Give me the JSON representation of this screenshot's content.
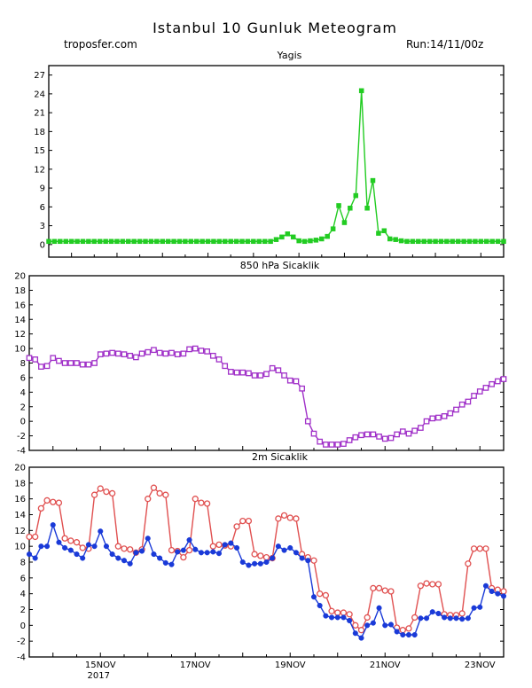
{
  "header": {
    "title": "Istanbul 10 Gunluk Meteogram",
    "site": "troposfer.com",
    "run": "Run:14/11/00z"
  },
  "x_axis": {
    "ticks": [
      {
        "label": "15NOV",
        "sub": "2017",
        "day": 1.5
      },
      {
        "label": "17NOV",
        "sub": "",
        "day": 3.5
      },
      {
        "label": "19NOV",
        "sub": "",
        "day": 5.5
      },
      {
        "label": "21NOV",
        "sub": "",
        "day": 7.5
      },
      {
        "label": "23NOV",
        "sub": "",
        "day": 9.5
      }
    ]
  },
  "chart_data": [
    {
      "type": "line",
      "title": "Yagis",
      "xlabel": "",
      "ylabel": "",
      "ylim": [
        -2,
        28.5
      ],
      "yticks": [
        0,
        3,
        6,
        9,
        12,
        15,
        18,
        21,
        24,
        27
      ],
      "grid": false,
      "series": [
        {
          "name": "",
          "color": "#22cc22",
          "marker": "square",
          "x": [
            0,
            0.125,
            0.25,
            0.375,
            0.5,
            0.625,
            0.75,
            0.875,
            1,
            1.125,
            1.25,
            1.375,
            1.5,
            1.625,
            1.75,
            1.875,
            2,
            2.125,
            2.25,
            2.375,
            2.5,
            2.625,
            2.75,
            2.875,
            3,
            3.125,
            3.25,
            3.375,
            3.5,
            3.625,
            3.75,
            3.875,
            4,
            4.125,
            4.25,
            4.375,
            4.5,
            4.625,
            4.75,
            4.875,
            5,
            5.125,
            5.25,
            5.375,
            5.5,
            5.625,
            5.75,
            5.875,
            6,
            6.125,
            6.25,
            6.375,
            6.5,
            6.625,
            6.75,
            6.875,
            7,
            7.125,
            7.25,
            7.375,
            7.5,
            7.625,
            7.75,
            7.875,
            8,
            8.125,
            8.25,
            8.375,
            8.5,
            8.625,
            8.75,
            8.875,
            9,
            9.125,
            9.25,
            9.375,
            9.5,
            9.625,
            9.75,
            9.875,
            10
          ],
          "values": [
            0.5,
            0.5,
            0.5,
            0.5,
            0.5,
            0.5,
            0.5,
            0.5,
            0.5,
            0.5,
            0.5,
            0.5,
            0.5,
            0.5,
            0.5,
            0.5,
            0.5,
            0.5,
            0.5,
            0.5,
            0.5,
            0.5,
            0.5,
            0.5,
            0.5,
            0.5,
            0.5,
            0.5,
            0.5,
            0.5,
            0.5,
            0.5,
            0.5,
            0.5,
            0.5,
            0.5,
            0.5,
            0.5,
            0.5,
            0.5,
            0.8,
            1.2,
            1.7,
            1.2,
            0.6,
            0.5,
            0.6,
            0.7,
            0.9,
            1.3,
            2.5,
            6.2,
            3.5,
            5.8,
            7.8,
            24.5,
            5.8,
            10.2,
            1.8,
            2.2,
            0.9,
            0.8,
            0.6,
            0.5,
            0.5,
            0.5,
            0.5,
            0.5,
            0.5,
            0.5,
            0.5,
            0.5,
            0.5,
            0.5,
            0.5,
            0.5,
            0.5,
            0.5,
            0.5,
            0.5,
            0.5
          ]
        }
      ]
    },
    {
      "type": "line",
      "title": "850 hPa Sicaklik",
      "xlabel": "",
      "ylabel": "",
      "ylim": [
        -4,
        20
      ],
      "yticks": [
        -4,
        -2,
        0,
        2,
        4,
        6,
        8,
        10,
        12,
        14,
        16,
        18,
        20
      ],
      "grid": false,
      "series": [
        {
          "name": "",
          "color": "#a030c8",
          "marker": "square-open",
          "x": [
            0,
            0.125,
            0.25,
            0.375,
            0.5,
            0.625,
            0.75,
            0.875,
            1,
            1.125,
            1.25,
            1.375,
            1.5,
            1.625,
            1.75,
            1.875,
            2,
            2.125,
            2.25,
            2.375,
            2.5,
            2.625,
            2.75,
            2.875,
            3,
            3.125,
            3.25,
            3.375,
            3.5,
            3.625,
            3.75,
            3.875,
            4,
            4.125,
            4.25,
            4.375,
            4.5,
            4.625,
            4.75,
            4.875,
            5,
            5.125,
            5.25,
            5.375,
            5.5,
            5.625,
            5.75,
            5.875,
            6,
            6.125,
            6.25,
            6.375,
            6.5,
            6.625,
            6.75,
            6.875,
            7,
            7.125,
            7.25,
            7.375,
            7.5,
            7.625,
            7.75,
            7.875,
            8,
            8.125,
            8.25,
            8.375,
            8.5,
            8.625,
            8.75,
            8.875,
            9,
            9.125,
            9.25,
            9.375,
            9.5,
            9.625,
            9.75,
            9.875,
            10
          ],
          "values": [
            8.7,
            8.5,
            7.5,
            7.6,
            8.7,
            8.3,
            8.0,
            8.0,
            8.0,
            7.8,
            7.8,
            8.0,
            9.2,
            9.3,
            9.4,
            9.3,
            9.2,
            9.0,
            8.8,
            9.3,
            9.5,
            9.8,
            9.4,
            9.3,
            9.4,
            9.2,
            9.3,
            9.9,
            10.0,
            9.7,
            9.6,
            9.0,
            8.5,
            7.6,
            6.8,
            6.7,
            6.7,
            6.6,
            6.3,
            6.3,
            6.5,
            7.3,
            7.0,
            6.3,
            5.6,
            5.5,
            4.5,
            0.0,
            -1.7,
            -2.8,
            -3.2,
            -3.2,
            -3.2,
            -3.1,
            -2.6,
            -2.2,
            -1.9,
            -1.8,
            -1.8,
            -2.1,
            -2.4,
            -2.3,
            -1.8,
            -1.4,
            -1.7,
            -1.3,
            -0.9,
            0.0,
            0.4,
            0.5,
            0.7,
            1.1,
            1.6,
            2.3,
            2.7,
            3.5,
            4.1,
            4.6,
            5.1,
            5.5,
            5.8
          ]
        }
      ]
    },
    {
      "type": "line",
      "title": "2m Sicaklik",
      "xlabel": "",
      "ylabel": "",
      "ylim": [
        -4,
        20
      ],
      "yticks": [
        -4,
        -2,
        0,
        2,
        4,
        6,
        8,
        10,
        12,
        14,
        16,
        18,
        20
      ],
      "grid": false,
      "series": [
        {
          "name": "",
          "color": "#e05050",
          "marker": "circle-open",
          "x": [
            0,
            0.125,
            0.25,
            0.375,
            0.5,
            0.625,
            0.75,
            0.875,
            1,
            1.125,
            1.25,
            1.375,
            1.5,
            1.625,
            1.75,
            1.875,
            2,
            2.125,
            2.25,
            2.375,
            2.5,
            2.625,
            2.75,
            2.875,
            3,
            3.125,
            3.25,
            3.375,
            3.5,
            3.625,
            3.75,
            3.875,
            4,
            4.125,
            4.25,
            4.375,
            4.5,
            4.625,
            4.75,
            4.875,
            5,
            5.125,
            5.25,
            5.375,
            5.5,
            5.625,
            5.75,
            5.875,
            6,
            6.125,
            6.25,
            6.375,
            6.5,
            6.625,
            6.75,
            6.875,
            7,
            7.125,
            7.25,
            7.375,
            7.5,
            7.625,
            7.75,
            7.875,
            8,
            8.125,
            8.25,
            8.375,
            8.5,
            8.625,
            8.75,
            8.875,
            9,
            9.125,
            9.25,
            9.375,
            9.5,
            9.625,
            9.75,
            9.875,
            10
          ],
          "values": [
            11.2,
            11.2,
            14.8,
            15.8,
            15.6,
            15.5,
            11.0,
            10.7,
            10.5,
            9.8,
            9.7,
            16.5,
            17.3,
            16.9,
            16.7,
            10.0,
            9.7,
            9.6,
            9.2,
            9.6,
            16.0,
            17.4,
            16.7,
            16.5,
            9.5,
            9.4,
            8.6,
            9.5,
            16.0,
            15.5,
            15.4,
            10.0,
            10.2,
            10.1,
            10.0,
            12.5,
            13.2,
            13.2,
            9.0,
            8.8,
            8.6,
            8.5,
            13.5,
            13.9,
            13.6,
            13.5,
            9.0,
            8.6,
            8.2,
            4.0,
            3.8,
            1.8,
            1.6,
            1.6,
            1.4,
            0.0,
            -0.6,
            1.0,
            4.7,
            4.7,
            4.4,
            4.3,
            -0.3,
            -0.6,
            -0.4,
            1.0,
            5.0,
            5.3,
            5.2,
            5.2,
            1.4,
            1.3,
            1.3,
            1.5,
            7.8,
            9.7,
            9.7,
            9.7,
            4.7,
            4.5,
            4.3
          ]
        },
        {
          "name": "",
          "color": "#1a3ad8",
          "marker": "circle",
          "x": [
            0,
            0.125,
            0.25,
            0.375,
            0.5,
            0.625,
            0.75,
            0.875,
            1,
            1.125,
            1.25,
            1.375,
            1.5,
            1.625,
            1.75,
            1.875,
            2,
            2.125,
            2.25,
            2.375,
            2.5,
            2.625,
            2.75,
            2.875,
            3,
            3.125,
            3.25,
            3.375,
            3.5,
            3.625,
            3.75,
            3.875,
            4,
            4.125,
            4.25,
            4.375,
            4.5,
            4.625,
            4.75,
            4.875,
            5,
            5.125,
            5.25,
            5.375,
            5.5,
            5.625,
            5.75,
            5.875,
            6,
            6.125,
            6.25,
            6.375,
            6.5,
            6.625,
            6.75,
            6.875,
            7,
            7.125,
            7.25,
            7.375,
            7.5,
            7.625,
            7.75,
            7.875,
            8,
            8.125,
            8.25,
            8.375,
            8.5,
            8.625,
            8.75,
            8.875,
            9,
            9.125,
            9.25,
            9.375,
            9.5,
            9.625,
            9.75,
            9.875,
            10
          ],
          "values": [
            9.0,
            8.5,
            10.0,
            10.0,
            12.7,
            10.5,
            9.8,
            9.5,
            9.0,
            8.5,
            10.2,
            10.0,
            11.9,
            10.0,
            9.0,
            8.5,
            8.2,
            7.8,
            9.2,
            9.4,
            11.0,
            9.0,
            8.5,
            7.9,
            7.7,
            9.3,
            9.5,
            10.8,
            9.6,
            9.2,
            9.2,
            9.3,
            9.1,
            10.2,
            10.4,
            9.8,
            8.0,
            7.6,
            7.8,
            7.8,
            8.0,
            8.5,
            10.0,
            9.5,
            9.8,
            9.2,
            8.5,
            8.2,
            3.6,
            2.5,
            1.2,
            1.0,
            1.0,
            1.0,
            0.6,
            -1.0,
            -1.6,
            0.0,
            0.3,
            2.2,
            0.0,
            0.1,
            -0.8,
            -1.2,
            -1.2,
            -1.2,
            0.9,
            0.9,
            1.7,
            1.5,
            1.0,
            0.9,
            0.9,
            0.8,
            0.9,
            2.2,
            2.3,
            5.0,
            4.3,
            4.0,
            3.7
          ]
        }
      ]
    }
  ]
}
